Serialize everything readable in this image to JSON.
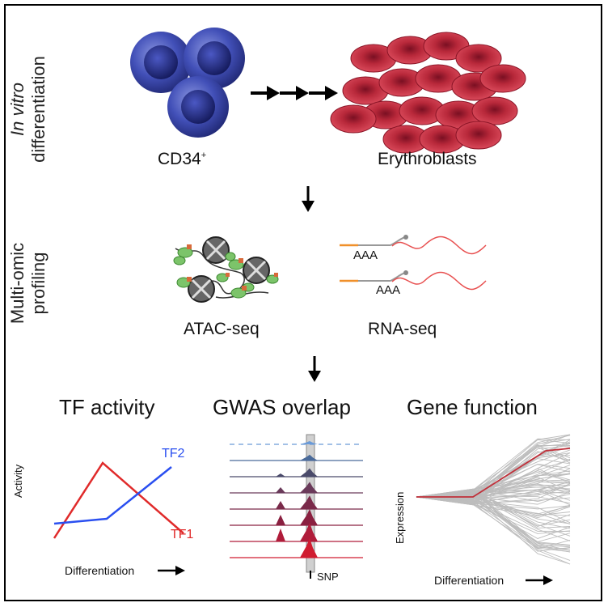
{
  "sections": {
    "invitro": {
      "line1": "In vitro",
      "line2": "differentiation"
    },
    "multiomic": {
      "line1": "Multi-omic",
      "line2": "profiling"
    }
  },
  "cells": {
    "source": "CD34",
    "source_sup": "+",
    "target": "Erythroblasts"
  },
  "profiling": {
    "atac": "ATAC-seq",
    "rna": "RNA-seq",
    "polyA": "AAA"
  },
  "panels": {
    "tf": {
      "title": "TF activity",
      "ylabel": "Activity",
      "xlabel": "Differentiation",
      "tf1": "TF1",
      "tf2": "TF2"
    },
    "gwas": {
      "title": "GWAS overlap",
      "snp": "SNP"
    },
    "gene": {
      "title": "Gene function",
      "ylabel": "Expression",
      "xlabel": "Differentiation"
    }
  },
  "colors": {
    "cd34_cell": "#3d4bb5",
    "erythro": "#b8283a",
    "tf1": "#e02a2a",
    "tf2": "#2a4ff0",
    "tracks": "#b3123a",
    "gene_lines": "#b8b8b8",
    "gene_highlight": "#c0303a",
    "orange_primer": "#f0902a"
  }
}
